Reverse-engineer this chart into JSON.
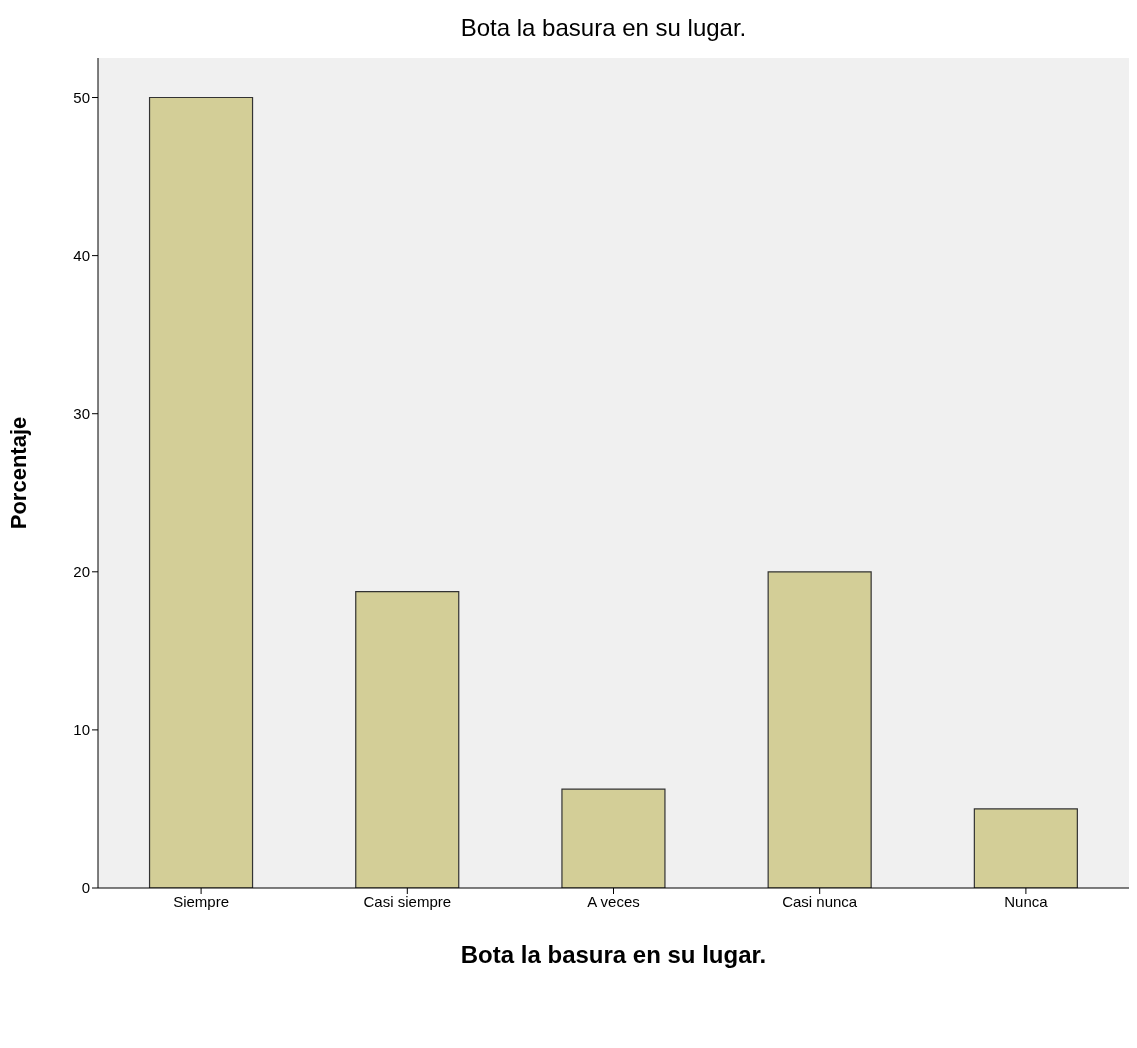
{
  "chart_data": {
    "type": "bar",
    "title": "Bota la basura en su lugar.",
    "xlabel": "Bota la basura en su lugar.",
    "ylabel": "Porcentaje",
    "categories": [
      "Siempre",
      "Casi siempre",
      "A veces",
      "Casi nunca",
      "Nunca"
    ],
    "values": [
      50,
      18.75,
      6.25,
      20,
      5
    ],
    "color": "#d3ce97",
    "ylim": [
      0,
      52.5
    ],
    "yticks": [
      0,
      10,
      20,
      30,
      40,
      50
    ],
    "grid": false,
    "legend": false
  }
}
